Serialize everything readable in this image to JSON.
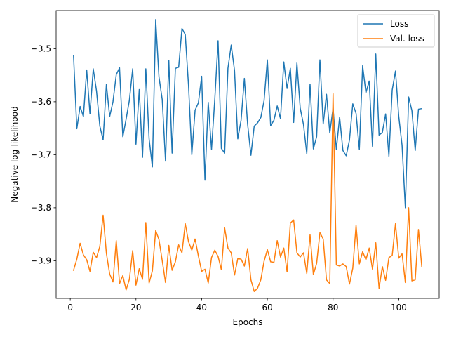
{
  "chart_data": {
    "type": "line",
    "xlabel": "Epochs",
    "ylabel": "Negative log-likelihood",
    "xlim": [
      -4.3,
      112.3
    ],
    "ylim": [
      -3.971,
      -3.428
    ],
    "xticks": [
      0,
      20,
      40,
      60,
      80,
      100
    ],
    "yticks": [
      -3.9,
      -3.8,
      -3.7,
      -3.6,
      -3.5
    ],
    "ytick_labels": [
      "−3.9",
      "−3.8",
      "−3.7",
      "−3.6",
      "−3.5"
    ],
    "grid": false,
    "legend_position": "top-right",
    "x": [
      1,
      2,
      3,
      4,
      5,
      6,
      7,
      8,
      9,
      10,
      11,
      12,
      13,
      14,
      15,
      16,
      17,
      18,
      19,
      20,
      21,
      22,
      23,
      24,
      25,
      26,
      27,
      28,
      29,
      30,
      31,
      32,
      33,
      34,
      35,
      36,
      37,
      38,
      39,
      40,
      41,
      42,
      43,
      44,
      45,
      46,
      47,
      48,
      49,
      50,
      51,
      52,
      53,
      54,
      55,
      56,
      57,
      58,
      59,
      60,
      61,
      62,
      63,
      64,
      65,
      66,
      67,
      68,
      69,
      70,
      71,
      72,
      73,
      74,
      75,
      76,
      77,
      78,
      79,
      80,
      81,
      82,
      83,
      84,
      85,
      86,
      87,
      88,
      89,
      90,
      91,
      92,
      93,
      94,
      95,
      96,
      97,
      98,
      99,
      100,
      101,
      102,
      103,
      104,
      105,
      106,
      107
    ],
    "series": [
      {
        "name": "Loss",
        "color": "#1f77b4",
        "values": [
          -3.513,
          -3.651,
          -3.609,
          -3.628,
          -3.54,
          -3.623,
          -3.538,
          -3.58,
          -3.646,
          -3.672,
          -3.567,
          -3.628,
          -3.6,
          -3.549,
          -3.536,
          -3.666,
          -3.633,
          -3.597,
          -3.538,
          -3.68,
          -3.577,
          -3.705,
          -3.538,
          -3.67,
          -3.723,
          -3.445,
          -3.553,
          -3.596,
          -3.712,
          -3.522,
          -3.697,
          -3.537,
          -3.535,
          -3.462,
          -3.473,
          -3.569,
          -3.7,
          -3.616,
          -3.602,
          -3.552,
          -3.748,
          -3.601,
          -3.69,
          -3.595,
          -3.485,
          -3.688,
          -3.697,
          -3.537,
          -3.493,
          -3.541,
          -3.67,
          -3.635,
          -3.556,
          -3.643,
          -3.701,
          -3.646,
          -3.64,
          -3.63,
          -3.598,
          -3.521,
          -3.645,
          -3.635,
          -3.608,
          -3.632,
          -3.525,
          -3.575,
          -3.537,
          -3.639,
          -3.527,
          -3.612,
          -3.643,
          -3.698,
          -3.567,
          -3.689,
          -3.666,
          -3.521,
          -3.642,
          -3.586,
          -3.659,
          -3.612,
          -3.69,
          -3.629,
          -3.692,
          -3.702,
          -3.672,
          -3.604,
          -3.622,
          -3.69,
          -3.532,
          -3.583,
          -3.561,
          -3.684,
          -3.51,
          -3.663,
          -3.658,
          -3.623,
          -3.703,
          -3.578,
          -3.542,
          -3.628,
          -3.682,
          -3.8,
          -3.591,
          -3.617,
          -3.692,
          -3.614,
          -3.613
        ]
      },
      {
        "name": "Val. loss",
        "color": "#ff7f0e",
        "values": [
          -3.918,
          -3.897,
          -3.867,
          -3.889,
          -3.898,
          -3.92,
          -3.884,
          -3.894,
          -3.873,
          -3.814,
          -3.886,
          -3.925,
          -3.94,
          -3.862,
          -3.943,
          -3.928,
          -3.955,
          -3.935,
          -3.881,
          -3.946,
          -3.915,
          -3.935,
          -3.828,
          -3.942,
          -3.919,
          -3.843,
          -3.86,
          -3.9,
          -3.941,
          -3.871,
          -3.918,
          -3.902,
          -3.87,
          -3.885,
          -3.83,
          -3.864,
          -3.88,
          -3.859,
          -3.891,
          -3.92,
          -3.916,
          -3.942,
          -3.894,
          -3.88,
          -3.892,
          -3.917,
          -3.838,
          -3.876,
          -3.885,
          -3.927,
          -3.896,
          -3.897,
          -3.91,
          -3.877,
          -3.936,
          -3.958,
          -3.952,
          -3.936,
          -3.901,
          -3.879,
          -3.902,
          -3.903,
          -3.862,
          -3.893,
          -3.876,
          -3.921,
          -3.829,
          -3.823,
          -3.885,
          -3.893,
          -3.885,
          -3.924,
          -3.851,
          -3.926,
          -3.905,
          -3.847,
          -3.859,
          -3.936,
          -3.943,
          -3.585,
          -3.908,
          -3.91,
          -3.906,
          -3.911,
          -3.944,
          -3.914,
          -3.833,
          -3.906,
          -3.883,
          -3.898,
          -3.876,
          -3.916,
          -3.866,
          -3.952,
          -3.911,
          -3.937,
          -3.894,
          -3.89,
          -3.83,
          -3.895,
          -3.887,
          -3.941,
          -3.8,
          -3.938,
          -3.936,
          -3.841,
          -3.911
        ]
      }
    ]
  }
}
